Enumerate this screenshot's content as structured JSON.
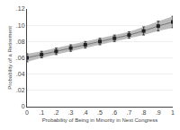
{
  "chart_data": {
    "type": "line",
    "xlabel": "Probability of Being in Minority in Next Congress",
    "ylabel": "Probability of a Retirement",
    "x": [
      0.0,
      0.1,
      0.2,
      0.3,
      0.4,
      0.5,
      0.6,
      0.7,
      0.8,
      0.9,
      1.0
    ],
    "series": [
      {
        "type": "band",
        "color": "#bbbbbb",
        "low": [
          0.055,
          0.06,
          0.064,
          0.068,
          0.072,
          0.076,
          0.08,
          0.084,
          0.088,
          0.093,
          0.097
        ],
        "high": [
          0.065,
          0.068,
          0.072,
          0.076,
          0.08,
          0.084,
          0.088,
          0.092,
          0.098,
          0.105,
          0.111
        ]
      },
      {
        "type": "line",
        "color": "#777777",
        "values": [
          0.06,
          0.064,
          0.068,
          0.072,
          0.076,
          0.08,
          0.084,
          0.088,
          0.093,
          0.099,
          0.104
        ]
      },
      {
        "type": "scatter",
        "color": "#222222",
        "marker": "square",
        "values": [
          0.06,
          0.064,
          0.068,
          0.072,
          0.076,
          0.08,
          0.084,
          0.088,
          0.093,
          0.099,
          0.104
        ],
        "error_low": [
          0.005,
          0.004,
          0.004,
          0.004,
          0.004,
          0.004,
          0.004,
          0.004,
          0.005,
          0.006,
          0.007
        ],
        "error_high": [
          0.005,
          0.004,
          0.004,
          0.004,
          0.004,
          0.004,
          0.004,
          0.004,
          0.005,
          0.006,
          0.007
        ]
      }
    ],
    "xlim": [
      0,
      1
    ],
    "ylim": [
      0,
      0.12
    ],
    "xticks": [
      0,
      {
        "value": 0.1,
        "label": ".1"
      },
      {
        "value": 0.2,
        "label": ".2"
      },
      {
        "value": 0.3,
        "label": ".3"
      },
      {
        "value": 0.4,
        "label": ".4"
      },
      {
        "value": 0.5,
        "label": ".5"
      },
      {
        "value": 0.6,
        "label": ".6"
      },
      {
        "value": 0.7,
        "label": ".7"
      },
      {
        "value": 0.8,
        "label": ".8"
      },
      {
        "value": 0.9,
        "label": ".9"
      },
      1
    ],
    "yticks": [
      0,
      {
        "value": 0.02,
        "label": ".02"
      },
      {
        "value": 0.04,
        "label": ".04"
      },
      {
        "value": 0.06,
        "label": ".06"
      },
      {
        "value": 0.08,
        "label": ".08"
      },
      {
        "value": 0.1,
        "label": ".10"
      },
      {
        "value": 0.12,
        "label": ".12"
      }
    ],
    "grid": "y"
  }
}
